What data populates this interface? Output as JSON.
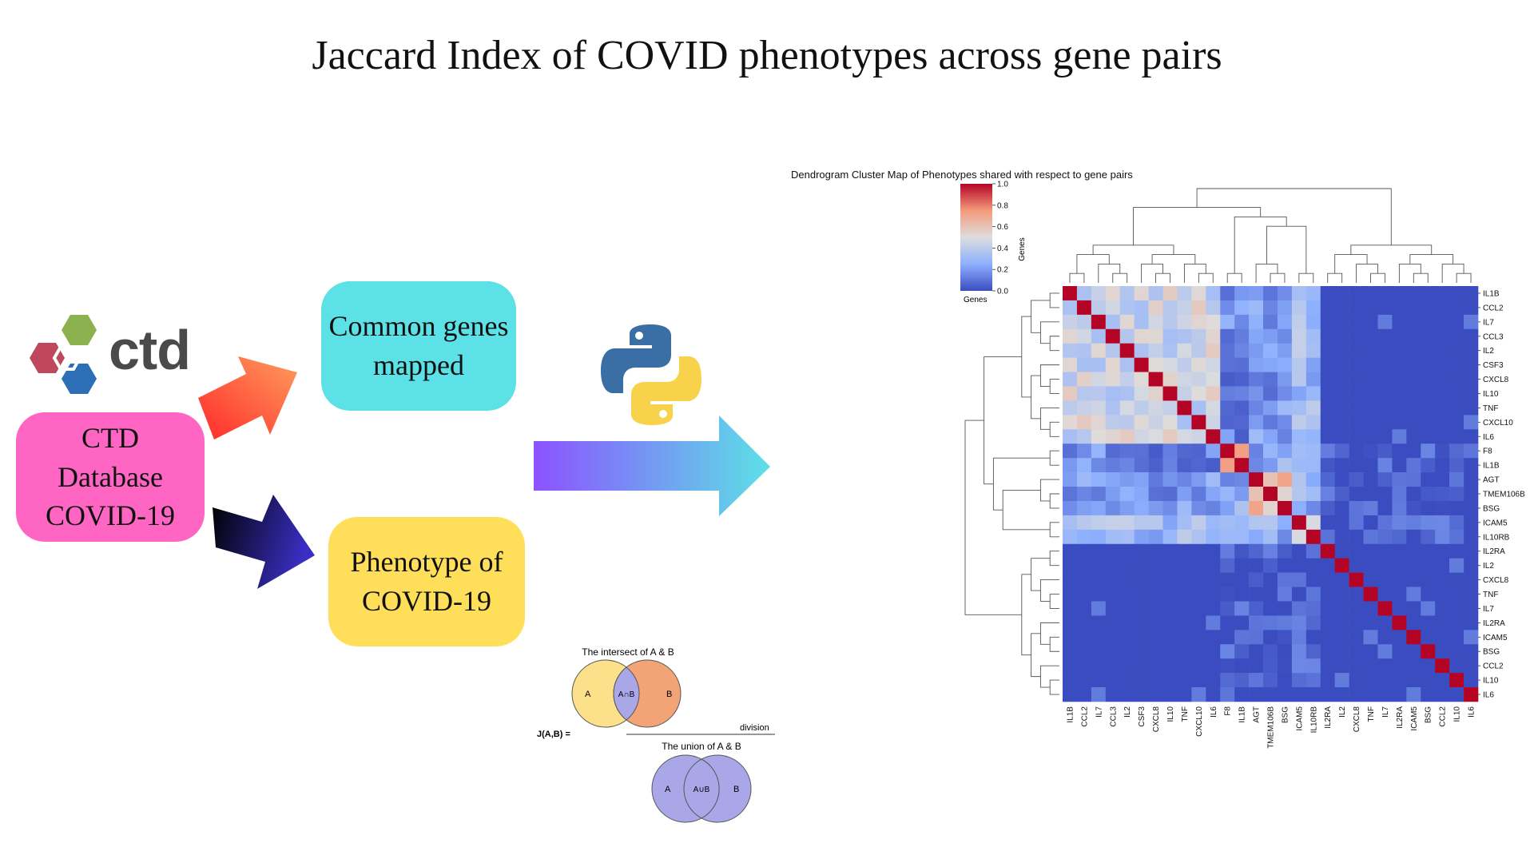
{
  "title": "Jaccard Index of COVID phenotypes across gene pairs",
  "boxes": {
    "ctd": "CTD Database COVID-19",
    "genes": "Common genes mapped",
    "phenotype": "Phenotype of COVID-19"
  },
  "logo_text": "ctd",
  "venn": {
    "intersect_title": "The intersect of A & B",
    "union_title": "The union of A & B",
    "label_a": "A",
    "label_b": "B",
    "intersect_label": "A∩B",
    "union_label": "A∪B",
    "division": "division",
    "formula": "J(A,B)  ="
  },
  "colors": {
    "ctd_box": "#ff66c4",
    "genes_box": "#5ce1e6",
    "phenotype_box": "#ffde59"
  },
  "chart_data": {
    "type": "heatmap",
    "title": "Dendrogram Cluster Map of Phenotypes shared with respect to gene pairs",
    "colorbar_label": "Genes",
    "colorbar_ticks": [
      "0.0",
      "0.2",
      "0.4",
      "0.6",
      "0.8",
      "1.0"
    ],
    "range": [
      0,
      1
    ],
    "colormap": "coolwarm",
    "row_axis_label": "Genes",
    "labels": [
      "IL1B",
      "CCL2",
      "IL7",
      "CCL3",
      "IL2",
      "CSF3",
      "CXCL8",
      "IL10",
      "TNF",
      "CXCL10",
      "IL6",
      "F8",
      "IL1B",
      "AGT",
      "TMEM106B",
      "BSG",
      "ICAM5",
      "IL10RB",
      "IL2RA",
      "IL2",
      "CXCL8",
      "TNF",
      "IL7",
      "IL2RA",
      "ICAM5",
      "BSG",
      "CCL2",
      "IL10",
      "IL6"
    ],
    "groups": [
      11,
      2,
      3,
      2,
      11
    ],
    "block_levels": [
      [
        0.45,
        0.15,
        0.2,
        0.3,
        0.0
      ],
      [
        0.15,
        0.8,
        0.25,
        0.3,
        0.02
      ],
      [
        0.2,
        0.25,
        0.6,
        0.25,
        0.01
      ],
      [
        0.3,
        0.3,
        0.25,
        0.5,
        0.03
      ],
      [
        0.0,
        0.02,
        0.01,
        0.03,
        0.0
      ]
    ]
  }
}
